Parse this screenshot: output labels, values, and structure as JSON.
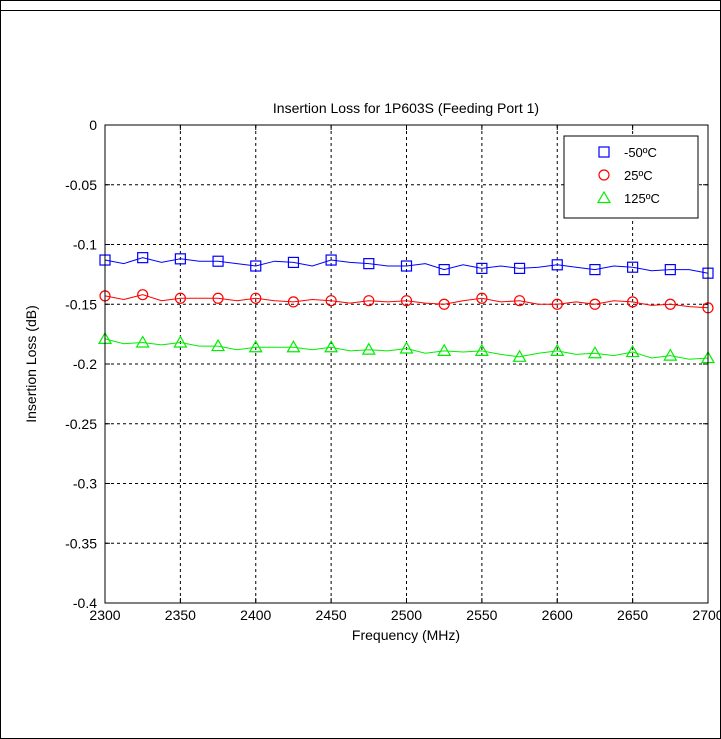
{
  "chart_data": {
    "type": "line",
    "title": "Insertion Loss for 1P603S (Feeding Port 1)",
    "xlabel": "Frequency (MHz)",
    "ylabel": "Insertion Loss (dB)",
    "xlim": [
      2300,
      2700
    ],
    "ylim": [
      -0.4,
      0
    ],
    "xticks": [
      2300,
      2350,
      2400,
      2450,
      2500,
      2550,
      2600,
      2650,
      2700
    ],
    "yticks": [
      0,
      -0.05,
      -0.1,
      -0.15,
      -0.2,
      -0.25,
      -0.3,
      -0.35,
      -0.4
    ],
    "xtick_labels": [
      "2300",
      "2350",
      "2400",
      "2450",
      "2500",
      "2550",
      "2600",
      "2650",
      "2700"
    ],
    "ytick_labels": [
      "0",
      "-0.05",
      "-0.1",
      "-0.15",
      "-0.2",
      "-0.25",
      "-0.3",
      "-0.35",
      "-0.4"
    ],
    "grid": true,
    "legend_position": "top-right",
    "x": [
      2300,
      2312.5,
      2325,
      2337.5,
      2350,
      2362.5,
      2375,
      2387.5,
      2400,
      2412.5,
      2425,
      2437.5,
      2450,
      2462.5,
      2475,
      2487.5,
      2500,
      2512.5,
      2525,
      2537.5,
      2550,
      2562.5,
      2575,
      2587.5,
      2600,
      2612.5,
      2625,
      2637.5,
      2650,
      2662.5,
      2675,
      2687.5,
      2700
    ],
    "series": [
      {
        "name": "-50ºC",
        "color": "#0000ff",
        "marker": "square",
        "values": [
          -0.113,
          -0.116,
          -0.111,
          -0.115,
          -0.112,
          -0.114,
          -0.114,
          -0.116,
          -0.118,
          -0.114,
          -0.115,
          -0.118,
          -0.113,
          -0.115,
          -0.116,
          -0.118,
          -0.118,
          -0.116,
          -0.121,
          -0.117,
          -0.12,
          -0.118,
          -0.12,
          -0.119,
          -0.117,
          -0.119,
          -0.121,
          -0.118,
          -0.119,
          -0.122,
          -0.121,
          -0.121,
          -0.124
        ]
      },
      {
        "name": "25ºC",
        "color": "#ff0000",
        "marker": "circle",
        "values": [
          -0.143,
          -0.146,
          -0.142,
          -0.147,
          -0.145,
          -0.145,
          -0.145,
          -0.147,
          -0.145,
          -0.147,
          -0.148,
          -0.146,
          -0.147,
          -0.149,
          -0.147,
          -0.148,
          -0.147,
          -0.149,
          -0.15,
          -0.147,
          -0.145,
          -0.148,
          -0.147,
          -0.15,
          -0.15,
          -0.148,
          -0.15,
          -0.147,
          -0.148,
          -0.151,
          -0.15,
          -0.152,
          -0.153
        ]
      },
      {
        "name": "125ºC",
        "color": "#00ee00",
        "marker": "triangle",
        "values": [
          -0.179,
          -0.183,
          -0.182,
          -0.184,
          -0.182,
          -0.185,
          -0.185,
          -0.188,
          -0.186,
          -0.186,
          -0.186,
          -0.188,
          -0.186,
          -0.189,
          -0.188,
          -0.189,
          -0.187,
          -0.191,
          -0.189,
          -0.19,
          -0.189,
          -0.192,
          -0.194,
          -0.191,
          -0.189,
          -0.192,
          -0.191,
          -0.193,
          -0.19,
          -0.195,
          -0.193,
          -0.196,
          -0.195
        ]
      }
    ]
  }
}
